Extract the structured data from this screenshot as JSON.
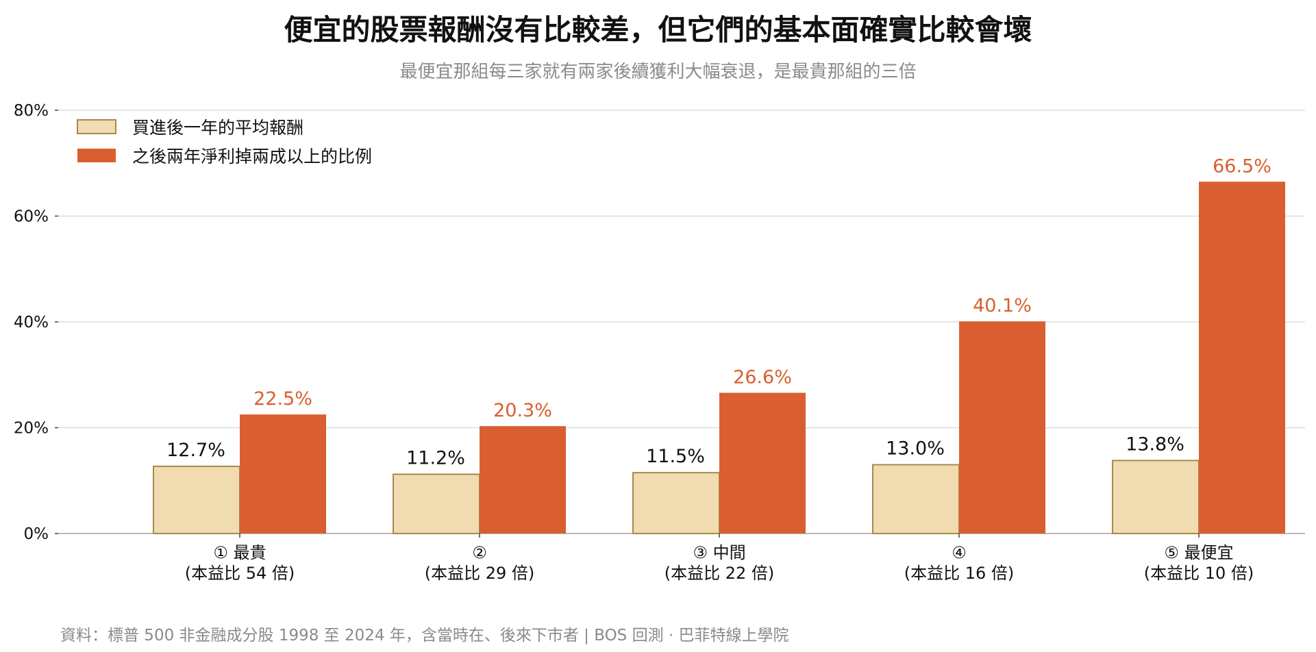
{
  "chart_data": {
    "type": "bar",
    "title": "便宜的股票報酬沒有比較差，但它們的基本面確實比較會壞",
    "subtitle": "最便宜那組每三家就有兩家後續獲利大幅衰退，是最貴那組的三倍",
    "categories": [
      [
        "① 最貴",
        "(本益比 54 倍)"
      ],
      [
        "②",
        "(本益比 29 倍)"
      ],
      [
        "③ 中間",
        "(本益比 22 倍)"
      ],
      [
        "④",
        "(本益比 16 倍)"
      ],
      [
        "⑤ 最便宜",
        "(本益比 10 倍)"
      ]
    ],
    "series": [
      {
        "name": "買進後一年的平均報酬",
        "values": [
          12.7,
          11.2,
          11.5,
          13.0,
          13.8
        ],
        "labels": [
          "12.7%",
          "11.2%",
          "11.5%",
          "13.0%",
          "13.8%"
        ],
        "color": "#f0dcb0",
        "edge_color": "#a8884a",
        "label_color": "#111111"
      },
      {
        "name": "之後兩年淨利掉兩成以上的比例",
        "values": [
          22.5,
          20.3,
          26.6,
          40.1,
          66.5
        ],
        "labels": [
          "22.5%",
          "20.3%",
          "26.6%",
          "40.1%",
          "66.5%"
        ],
        "color": "#d95f30",
        "edge_color": "#d95f30",
        "label_color": "#d95f30"
      }
    ],
    "ylim": [
      0,
      80
    ],
    "yticks": [
      0,
      20,
      40,
      60,
      80
    ],
    "ytick_labels": [
      "0%",
      "20%",
      "40%",
      "60%",
      "80%"
    ],
    "grid": true,
    "legend_position": "top-left",
    "xlabel": "",
    "ylabel": ""
  },
  "source": "資料：標普 500 非金融成分股 1998 至 2024 年，含當時在、後來下市者 | BOS 回測 · 巴菲特線上學院",
  "colors": {
    "grid": "#dddddd",
    "axis": "#bbbbbb",
    "subtitle": "#8a8a8a"
  }
}
